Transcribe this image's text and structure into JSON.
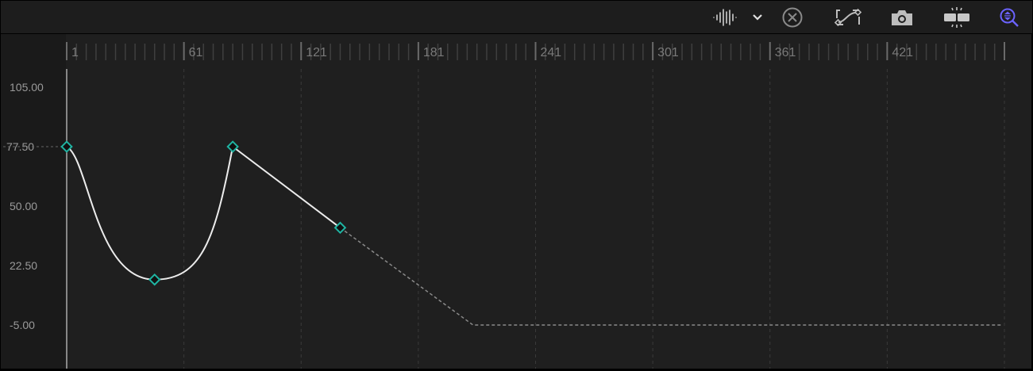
{
  "toolbar": {
    "icons": [
      "audio-waveform-icon",
      "chevron-down-icon",
      "clear-curves-icon",
      "curve-interpolation-icon",
      "snapshot-camera-icon",
      "fit-frames-icon",
      "zoom-to-fit-icon"
    ],
    "accent_color": "#6b63ff"
  },
  "ruler": {
    "labels": [
      "1",
      "61",
      "121",
      "181",
      "241",
      "301",
      "361",
      "421"
    ]
  },
  "value_axis": {
    "labels": [
      "105.00",
      "77.50",
      "50.00",
      "22.50",
      "-5.00"
    ]
  },
  "curve": {
    "keyframe_color": "#1fb5a3",
    "keyframes": [
      {
        "frame": 1,
        "value": 77.5
      },
      {
        "frame": 46,
        "value": 16
      },
      {
        "frame": 86,
        "value": 77.5
      },
      {
        "frame": 141,
        "value": 40
      }
    ],
    "extrapolation": [
      {
        "frame": 209,
        "value": -5
      },
      {
        "frame": 480,
        "value": -5
      }
    ],
    "playhead_frame": 1
  }
}
